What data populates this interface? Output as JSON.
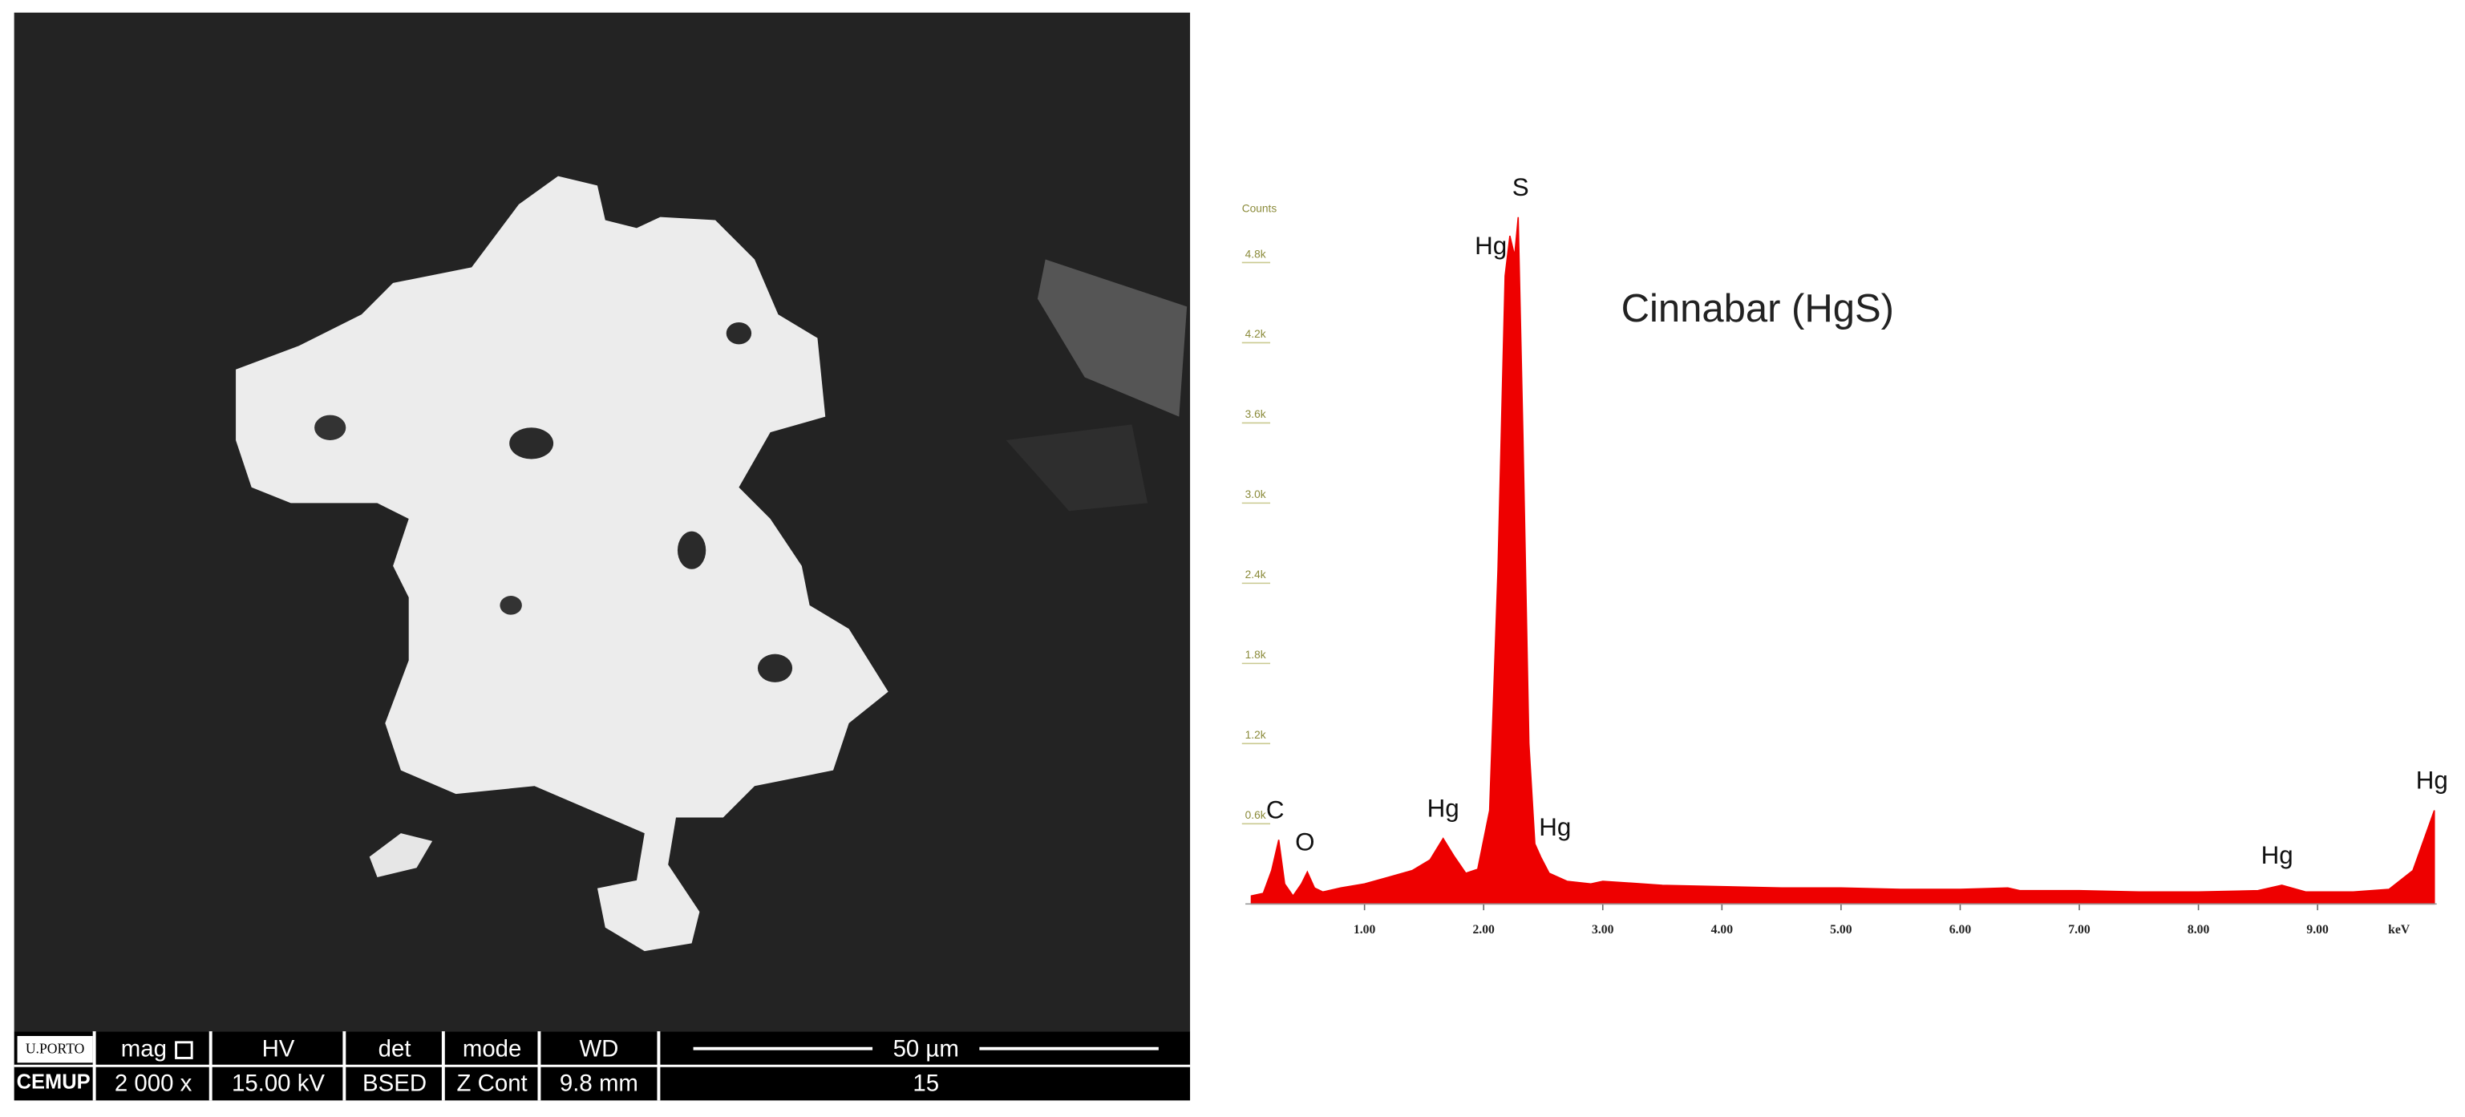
{
  "sem_panel": {
    "logo_top": "U.PORTO",
    "logo_bottom": "CEMUP",
    "fields": [
      {
        "label": "mag",
        "value": "2 000 x"
      },
      {
        "label": "HV",
        "value": "15.00 kV"
      },
      {
        "label": "det",
        "value": "BSED"
      },
      {
        "label": "mode",
        "value": "Z Cont"
      },
      {
        "label": "WD",
        "value": "9.8 mm"
      }
    ],
    "scale_bar": "50 µm",
    "frame": "15"
  },
  "chart_data": {
    "type": "area",
    "annotation": "Cinnabar (HgS)",
    "y_label": "Counts",
    "x_label": "keV",
    "color": "#ee0000",
    "x": [
      0.05,
      0.15,
      0.22,
      0.28,
      0.33,
      0.4,
      0.47,
      0.52,
      0.58,
      0.65,
      0.8,
      1.0,
      1.2,
      1.4,
      1.55,
      1.66,
      1.75,
      1.85,
      1.95,
      2.05,
      2.12,
      2.18,
      2.22,
      2.26,
      2.29,
      2.33,
      2.38,
      2.43,
      2.48,
      2.55,
      2.7,
      2.9,
      3.0,
      3.5,
      4.0,
      4.5,
      5.0,
      5.5,
      6.0,
      6.4,
      6.5,
      7.0,
      7.5,
      8.0,
      8.5,
      8.7,
      8.9,
      9.3,
      9.6,
      9.8,
      9.9,
      9.98
    ],
    "values": [
      60,
      80,
      250,
      480,
      150,
      60,
      150,
      240,
      120,
      90,
      120,
      150,
      200,
      250,
      330,
      490,
      360,
      230,
      260,
      700,
      2500,
      4700,
      5000,
      4850,
      5140,
      3500,
      1200,
      450,
      350,
      230,
      170,
      150,
      170,
      140,
      130,
      120,
      120,
      110,
      110,
      120,
      100,
      100,
      90,
      90,
      100,
      140,
      90,
      90,
      110,
      250,
      500,
      700
    ],
    "xlim": [
      0,
      10
    ],
    "ylim": [
      0,
      5400
    ],
    "xticks": [
      {
        "value": 1,
        "label": "1.00"
      },
      {
        "value": 2,
        "label": "2.00"
      },
      {
        "value": 3,
        "label": "3.00"
      },
      {
        "value": 4,
        "label": "4.00"
      },
      {
        "value": 5,
        "label": "5.00"
      },
      {
        "value": 6,
        "label": "6.00"
      },
      {
        "value": 7,
        "label": "7.00"
      },
      {
        "value": 8,
        "label": "8.00"
      },
      {
        "value": 9,
        "label": "9.00"
      }
    ],
    "yticks": [
      {
        "value": 600,
        "label": "0.6k"
      },
      {
        "value": 1200,
        "label": "1.2k"
      },
      {
        "value": 1800,
        "label": "1.8k"
      },
      {
        "value": 2400,
        "label": "2.4k"
      },
      {
        "value": 3000,
        "label": "3.0k"
      },
      {
        "value": 3600,
        "label": "3.6k"
      },
      {
        "value": 4200,
        "label": "4.2k"
      },
      {
        "value": 4800,
        "label": "4.8k"
      }
    ],
    "peak_labels": [
      {
        "text": "C",
        "x": 0.25
      },
      {
        "text": "O",
        "x": 0.5
      },
      {
        "text": "Hg",
        "x": 1.66
      },
      {
        "text": "Hg",
        "x": 2.06
      },
      {
        "text": "S",
        "x": 2.31
      },
      {
        "text": "Hg",
        "x": 2.6
      },
      {
        "text": "Hg",
        "x": 8.66
      },
      {
        "text": "Hg",
        "x": 9.96
      }
    ]
  }
}
